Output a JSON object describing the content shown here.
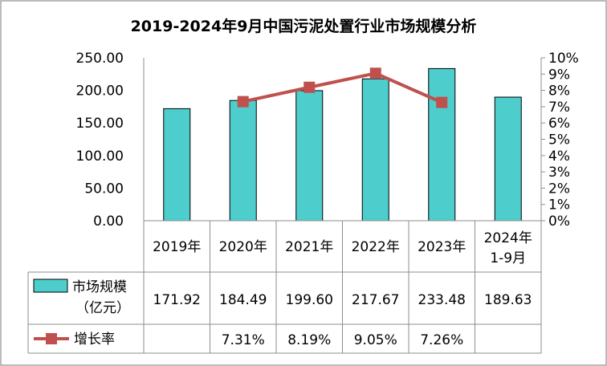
{
  "chart_data": {
    "type": "bar",
    "title": "2019-2024年9月中国污泥处置行业市场规模分析",
    "categories": [
      "2019年",
      "2020年",
      "2021年",
      "2022年",
      "2023年",
      "2024年\n1-9月"
    ],
    "category_lines": [
      [
        "2019年"
      ],
      [
        "2020年"
      ],
      [
        "2021年"
      ],
      [
        "2022年"
      ],
      [
        "2023年"
      ],
      [
        "2024年",
        "1-9月"
      ]
    ],
    "series": [
      {
        "name": "市场规模（亿元）",
        "name_lines": [
          "市场规模",
          "（亿元）"
        ],
        "kind": "bar",
        "axis": "left",
        "color": "#4ECDCD",
        "values": [
          171.92,
          184.49,
          199.6,
          217.67,
          233.48,
          189.63
        ],
        "labels": [
          "171.92",
          "184.49",
          "199.60",
          "217.67",
          "233.48",
          "189.63"
        ]
      },
      {
        "name": "增长率",
        "kind": "line",
        "axis": "right",
        "color": "#C0504D",
        "values": [
          null,
          7.31,
          8.19,
          9.05,
          7.26,
          null
        ],
        "labels": [
          "",
          "7.31%",
          "8.19%",
          "9.05%",
          "7.26%",
          ""
        ]
      }
    ],
    "y_left": {
      "min": 0,
      "max": 250,
      "step": 50,
      "ticks": [
        "0.00",
        "50.00",
        "100.00",
        "150.00",
        "200.00",
        "250.00"
      ]
    },
    "y_right": {
      "min": 0,
      "max": 10,
      "step": 1,
      "ticks": [
        "0%",
        "1%",
        "2%",
        "3%",
        "4%",
        "5%",
        "6%",
        "7%",
        "8%",
        "9%",
        "10%"
      ]
    },
    "grid": false,
    "legend": "data-table"
  }
}
